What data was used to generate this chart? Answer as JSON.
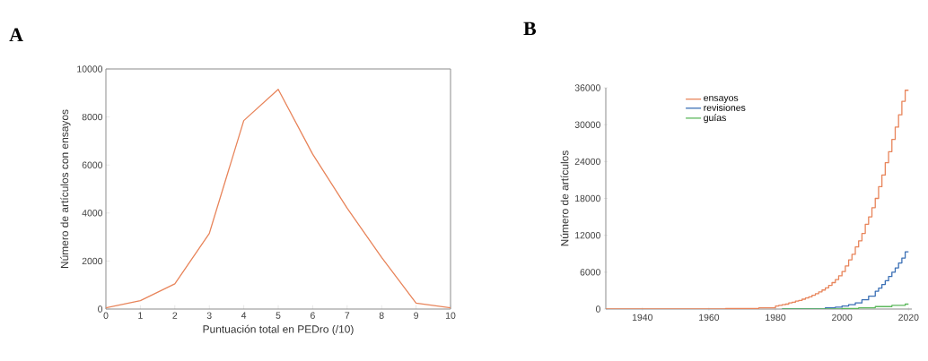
{
  "chart_data": [
    {
      "type": "line",
      "title": "A",
      "xlabel": "Puntuación total en PEDro (/10)",
      "ylabel": "Número de artículos con ensayos",
      "x": [
        0,
        1,
        2,
        3,
        4,
        5,
        6,
        7,
        8,
        9,
        10
      ],
      "series": [
        {
          "color": "#e8845a",
          "values": [
            50,
            350,
            1050,
            3150,
            7850,
            9150,
            6450,
            4200,
            2150,
            250,
            50
          ]
        }
      ],
      "xlim": [
        0,
        10
      ],
      "xticks": [
        0,
        1,
        2,
        3,
        4,
        5,
        6,
        7,
        8,
        9,
        10
      ],
      "ylim": [
        0,
        10000
      ],
      "yticks": [
        0,
        2000,
        4000,
        6000,
        8000,
        10000
      ],
      "grid": false,
      "legend": false
    },
    {
      "type": "step",
      "title": "B",
      "ylabel": "Número de artículos",
      "series": [
        {
          "name": "ensayos",
          "color": "#e8845a",
          "x": [
            1929,
            1940,
            1950,
            1960,
            1965,
            1970,
            1975,
            1980,
            1981,
            1982,
            1983,
            1984,
            1985,
            1986,
            1987,
            1988,
            1989,
            1990,
            1991,
            1992,
            1993,
            1994,
            1995,
            1996,
            1997,
            1998,
            1999,
            2000,
            2001,
            2002,
            2003,
            2004,
            2005,
            2006,
            2007,
            2008,
            2009,
            2010,
            2011,
            2012,
            2013,
            2014,
            2015,
            2016,
            2017,
            2018,
            2019,
            2020
          ],
          "values": [
            0,
            0,
            0,
            0,
            100,
            100,
            200,
            500,
            600,
            700,
            800,
            1000,
            1100,
            1300,
            1400,
            1600,
            1800,
            2000,
            2250,
            2500,
            2800,
            3100,
            3450,
            3850,
            4300,
            4800,
            5400,
            6100,
            7000,
            8000,
            8900,
            10100,
            11100,
            12300,
            13800,
            15000,
            16500,
            18000,
            19900,
            21800,
            23800,
            25600,
            27600,
            29600,
            31600,
            33800,
            35600,
            35600
          ]
        },
        {
          "name": "revisiones",
          "color": "#3a6fb5",
          "x": [
            1982,
            1990,
            1995,
            1998,
            2000,
            2002,
            2004,
            2006,
            2008,
            2010,
            2011,
            2012,
            2013,
            2014,
            2015,
            2016,
            2017,
            2018,
            2019,
            2020
          ],
          "values": [
            0,
            0,
            200,
            300,
            500,
            700,
            1000,
            1500,
            2100,
            2900,
            3400,
            4000,
            4600,
            5300,
            6000,
            6700,
            7500,
            8300,
            9300,
            9300
          ]
        },
        {
          "name": "guías",
          "color": "#5cb85c",
          "x": [
            1982,
            2000,
            2005,
            2010,
            2015,
            2019,
            2020
          ],
          "values": [
            0,
            100,
            200,
            400,
            600,
            800,
            800
          ]
        }
      ],
      "xlim": [
        1929,
        2021
      ],
      "xticks": [
        1940,
        1960,
        1980,
        2000,
        2020
      ],
      "ylim": [
        0,
        36000
      ],
      "yticks": [
        0,
        6000,
        12000,
        18000,
        24000,
        30000,
        36000
      ],
      "grid": false,
      "legend": "top left"
    }
  ]
}
